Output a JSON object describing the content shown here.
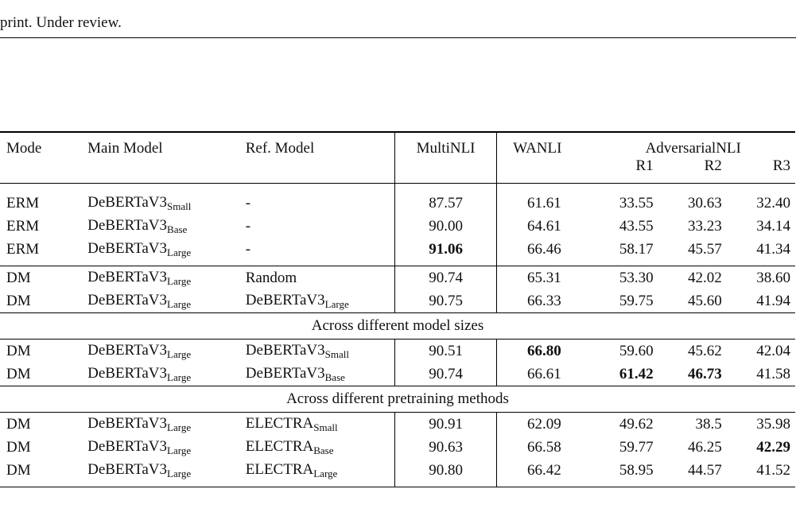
{
  "page_header": "print. Under review.",
  "table": {
    "headers": {
      "mode": "Mode",
      "main_model": "Main Model",
      "ref_model": "Ref. Model",
      "multinli": "MultiNLI",
      "wanli": "WANLI",
      "adversarialnli": "AdversarialNLI",
      "r1": "R1",
      "r2": "R2",
      "r3": "R3"
    },
    "model_base": "DeBERTaV3",
    "electra_base": "ELECTRA",
    "sizes": {
      "small": "Small",
      "base": "Base",
      "large": "Large"
    },
    "sections": {
      "sizes": "Across different model sizes",
      "pretraining": "Across different pretraining methods"
    },
    "rows": [
      {
        "mode": "ERM",
        "main_sub": "Small",
        "ref": "-",
        "mnli": "87.57",
        "wanli": "61.61",
        "r1": "33.55",
        "r2": "30.63",
        "r3": "32.40"
      },
      {
        "mode": "ERM",
        "main_sub": "Base",
        "ref": "-",
        "mnli": "90.00",
        "wanli": "64.61",
        "r1": "43.55",
        "r2": "33.23",
        "r3": "34.14"
      },
      {
        "mode": "ERM",
        "main_sub": "Large",
        "ref": "-",
        "mnli": "91.06",
        "wanli": "66.46",
        "r1": "58.17",
        "r2": "45.57",
        "r3": "41.34"
      },
      {
        "mode": "DM",
        "main_sub": "Large",
        "ref": "Random",
        "mnli": "90.74",
        "wanli": "65.31",
        "r1": "53.30",
        "r2": "42.02",
        "r3": "38.60"
      },
      {
        "mode": "DM",
        "main_sub": "Large",
        "ref_base": "DeBERTaV3",
        "ref_sub": "Large",
        "mnli": "90.75",
        "wanli": "66.33",
        "r1": "59.75",
        "r2": "45.60",
        "r3": "41.94"
      },
      {
        "mode": "DM",
        "main_sub": "Large",
        "ref_base": "DeBERTaV3",
        "ref_sub": "Small",
        "mnli": "90.51",
        "wanli": "66.80",
        "r1": "59.60",
        "r2": "45.62",
        "r3": "42.04"
      },
      {
        "mode": "DM",
        "main_sub": "Large",
        "ref_base": "DeBERTaV3",
        "ref_sub": "Base",
        "mnli": "90.74",
        "wanli": "66.61",
        "r1": "61.42",
        "r2": "46.73",
        "r3": "41.58"
      },
      {
        "mode": "DM",
        "main_sub": "Large",
        "ref_base": "ELECTRA",
        "ref_sub": "Small",
        "mnli": "90.91",
        "wanli": "62.09",
        "r1": "49.62",
        "r2": "38.5",
        "r3": "35.98"
      },
      {
        "mode": "DM",
        "main_sub": "Large",
        "ref_base": "ELECTRA",
        "ref_sub": "Base",
        "mnli": "90.63",
        "wanli": "66.58",
        "r1": "59.77",
        "r2": "46.25",
        "r3": "42.29"
      },
      {
        "mode": "DM",
        "main_sub": "Large",
        "ref_base": "ELECTRA",
        "ref_sub": "Large",
        "mnli": "90.80",
        "wanli": "66.42",
        "r1": "58.95",
        "r2": "44.57",
        "r3": "41.52"
      }
    ]
  }
}
